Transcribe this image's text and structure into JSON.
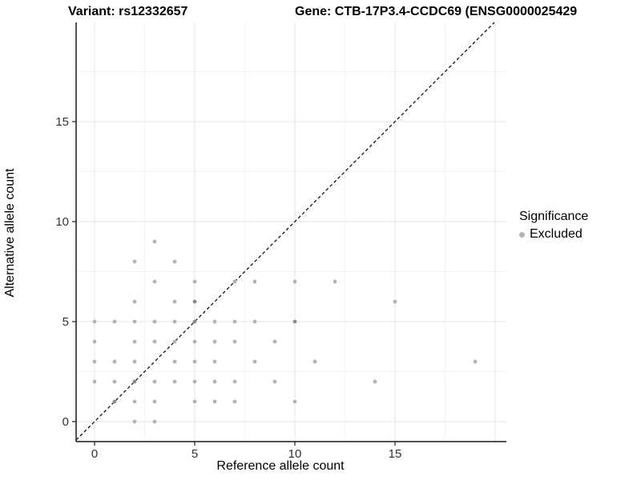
{
  "titles": {
    "variant": "Variant: rs12332657",
    "gene": "Gene: CTB-17P3.4-CCDC69 (ENSG0000025429"
  },
  "axes": {
    "x_label": "Reference allele count",
    "y_label": "Alternative allele count",
    "x_ticks": [
      0,
      5,
      10,
      15
    ],
    "y_ticks": [
      0,
      5,
      10,
      15
    ]
  },
  "legend": {
    "title": "Significance",
    "items": [
      {
        "label": "Excluded",
        "color": "#b3b3b3"
      }
    ]
  },
  "colors": {
    "point": "#b3b3b3",
    "point_dark": "#8c8c8c",
    "axis_line": "#1a1a1a",
    "tick_text": "#333333",
    "grid_major": "#e6e6e6",
    "grid_minor": "#f3f3f3",
    "identity_line": "#000000"
  },
  "chart_data": {
    "type": "scatter",
    "title_left": "Variant: rs12332657",
    "title_right": "Gene: CTB-17P3.4-CCDC69 (ENSG0000025429",
    "xlabel": "Reference allele count",
    "ylabel": "Alternative allele count",
    "xlim": [
      -1,
      20.5
    ],
    "ylim": [
      -1,
      20
    ],
    "grid": true,
    "legend_position": "right",
    "identity_line": {
      "style": "dashed",
      "slope": 1,
      "intercept": 0
    },
    "series": [
      {
        "name": "Excluded",
        "points": [
          [
            3,
            9
          ],
          [
            2,
            8
          ],
          [
            4,
            8
          ],
          [
            3,
            7
          ],
          [
            5,
            7
          ],
          [
            7,
            7
          ],
          [
            8,
            7
          ],
          [
            10,
            7
          ],
          [
            12,
            7
          ],
          [
            2,
            6
          ],
          [
            4,
            6
          ],
          [
            5,
            6
          ],
          [
            15,
            6
          ],
          [
            0,
            5
          ],
          [
            1,
            5
          ],
          [
            2,
            5
          ],
          [
            3,
            5
          ],
          [
            4,
            5
          ],
          [
            5,
            5
          ],
          [
            6,
            5
          ],
          [
            7,
            5
          ],
          [
            8,
            5
          ],
          [
            10,
            5
          ],
          [
            0,
            4
          ],
          [
            2,
            4
          ],
          [
            3,
            4
          ],
          [
            4,
            4
          ],
          [
            5,
            4
          ],
          [
            6,
            4
          ],
          [
            7,
            4
          ],
          [
            9,
            4
          ],
          [
            0,
            3
          ],
          [
            1,
            3
          ],
          [
            2,
            3
          ],
          [
            4,
            3
          ],
          [
            5,
            3
          ],
          [
            6,
            3
          ],
          [
            8,
            3
          ],
          [
            11,
            3
          ],
          [
            19,
            3
          ],
          [
            0,
            2
          ],
          [
            1,
            2
          ],
          [
            2,
            2
          ],
          [
            3,
            2
          ],
          [
            4,
            2
          ],
          [
            5,
            2
          ],
          [
            6,
            2
          ],
          [
            7,
            2
          ],
          [
            9,
            2
          ],
          [
            14,
            2
          ],
          [
            1,
            1
          ],
          [
            2,
            1
          ],
          [
            3,
            1
          ],
          [
            5,
            1
          ],
          [
            6,
            1
          ],
          [
            7,
            1
          ],
          [
            10,
            1
          ],
          [
            2,
            0
          ],
          [
            3,
            0
          ]
        ],
        "dark_points": [
          [
            5,
            6
          ],
          [
            10,
            5
          ],
          [
            2,
            2
          ],
          [
            1,
            1
          ],
          [
            5,
            5
          ]
        ]
      }
    ]
  }
}
